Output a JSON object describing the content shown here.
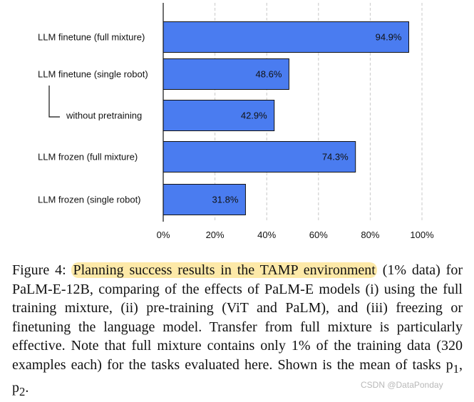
{
  "chart_data": {
    "type": "bar",
    "orientation": "horizontal",
    "categories": [
      "LLM finetune (full mixture)",
      "LLM finetune (single robot)",
      "without pretraining",
      "LLM frozen (full mixture)",
      "LLM frozen (single robot)"
    ],
    "values": [
      94.9,
      48.6,
      42.9,
      74.3,
      31.8
    ],
    "value_labels": [
      "94.9%",
      "48.6%",
      "42.9%",
      "74.3%",
      "31.8%"
    ],
    "xlim": [
      0,
      100
    ],
    "xticks": [
      0,
      20,
      40,
      60,
      80,
      100
    ],
    "xtick_labels": [
      "0%",
      "20%",
      "40%",
      "60%",
      "80%",
      "100%"
    ],
    "grid": "vertical dashed",
    "bar_color": "#4a7cf0",
    "title": "",
    "xlabel": "",
    "ylabel": ""
  },
  "caption": {
    "prefix": "Figure 4:",
    "highlight": "Planning success results in the TAMP environment",
    "body": "(1% data) for PaLM-E-12B, comparing of the effects of PaLM-E models (i) using the full training mixture, (ii) pre-training (ViT and PaLM), and (iii) freezing or finetuning the language model. Transfer from full mixture is particularly effective. Note that full mixture contains only 1% of the training data (320 examples each) for the tasks evaluated here. Shown is the mean of tasks p",
    "subscript_1": "1",
    "separator": ", p",
    "subscript_2": "2",
    "end": "."
  },
  "watermark": "CSDN @DataPonday",
  "highlight_color": "#fde9a8"
}
